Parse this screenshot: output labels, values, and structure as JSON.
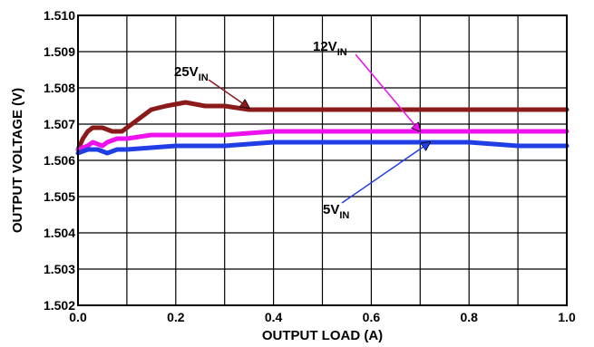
{
  "chart_data": {
    "type": "line",
    "title": "",
    "xlabel": "OUTPUT LOAD (A)",
    "ylabel": "OUTPUT VOLTAGE (V)",
    "xlim": [
      0,
      1.0
    ],
    "ylim": [
      1.502,
      1.51
    ],
    "x_ticks": [
      "0.0",
      "0.2",
      "0.4",
      "0.6",
      "0.8",
      "1.0"
    ],
    "y_ticks": [
      "1.502",
      "1.503",
      "1.504",
      "1.505",
      "1.506",
      "1.507",
      "1.508",
      "1.509",
      "1.510"
    ],
    "grid": true,
    "series": [
      {
        "name": "25V",
        "label_main": "25V",
        "label_sub": "IN",
        "color": "#8b1a1a",
        "points": [
          [
            0,
            1.5063
          ],
          [
            0.01,
            1.5066
          ],
          [
            0.02,
            1.5068
          ],
          [
            0.03,
            1.5069
          ],
          [
            0.05,
            1.5069
          ],
          [
            0.07,
            1.5068
          ],
          [
            0.09,
            1.5068
          ],
          [
            0.12,
            1.5071
          ],
          [
            0.15,
            1.5074
          ],
          [
            0.18,
            1.5075
          ],
          [
            0.22,
            1.5076
          ],
          [
            0.26,
            1.5075
          ],
          [
            0.3,
            1.5075
          ],
          [
            0.35,
            1.5074
          ],
          [
            0.4,
            1.5074
          ],
          [
            0.5,
            1.5074
          ],
          [
            0.6,
            1.5074
          ],
          [
            0.7,
            1.5074
          ],
          [
            0.8,
            1.5074
          ],
          [
            0.9,
            1.5074
          ],
          [
            1.0,
            1.5074
          ]
        ]
      },
      {
        "name": "12V",
        "label_main": "12V",
        "label_sub": "IN",
        "color": "#ee11ee",
        "points": [
          [
            0,
            1.5063
          ],
          [
            0.02,
            1.5064
          ],
          [
            0.03,
            1.5065
          ],
          [
            0.05,
            1.5064
          ],
          [
            0.06,
            1.5065
          ],
          [
            0.08,
            1.5066
          ],
          [
            0.1,
            1.5066
          ],
          [
            0.15,
            1.5067
          ],
          [
            0.2,
            1.5067
          ],
          [
            0.3,
            1.5067
          ],
          [
            0.4,
            1.5068
          ],
          [
            0.5,
            1.5068
          ],
          [
            0.6,
            1.5068
          ],
          [
            0.7,
            1.5068
          ],
          [
            0.8,
            1.5068
          ],
          [
            0.9,
            1.5068
          ],
          [
            1.0,
            1.5068
          ]
        ]
      },
      {
        "name": "5V",
        "label_main": "5V",
        "label_sub": "IN",
        "color": "#1f3ee6",
        "points": [
          [
            0,
            1.5062
          ],
          [
            0.02,
            1.5063
          ],
          [
            0.04,
            1.5063
          ],
          [
            0.06,
            1.5062
          ],
          [
            0.08,
            1.5063
          ],
          [
            0.1,
            1.5063
          ],
          [
            0.2,
            1.5064
          ],
          [
            0.3,
            1.5064
          ],
          [
            0.4,
            1.5065
          ],
          [
            0.5,
            1.5065
          ],
          [
            0.6,
            1.5065
          ],
          [
            0.7,
            1.5065
          ],
          [
            0.8,
            1.5065
          ],
          [
            0.9,
            1.5064
          ],
          [
            1.0,
            1.5064
          ]
        ]
      }
    ],
    "annotations": [
      {
        "series": "25V",
        "text_main": "25V",
        "text_sub": "IN",
        "arrow_to": [
          0.35,
          1.50745
        ]
      },
      {
        "series": "12V",
        "text_main": "12V",
        "text_sub": "IN",
        "arrow_to": [
          0.7,
          1.5068
        ]
      },
      {
        "series": "5V",
        "text_main": "5V",
        "text_sub": "IN",
        "arrow_to": [
          0.72,
          1.5065
        ]
      }
    ]
  }
}
